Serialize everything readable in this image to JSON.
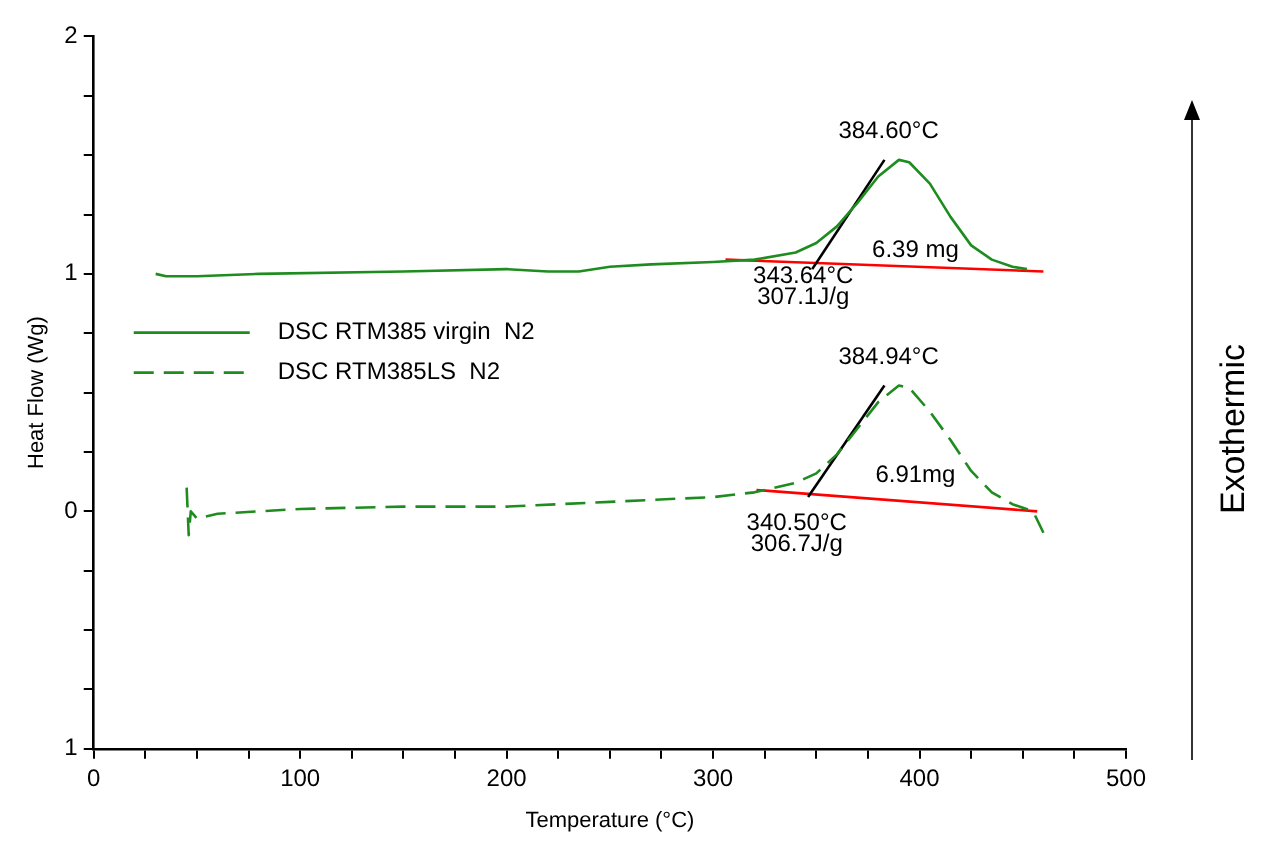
{
  "chart_data": {
    "type": "line",
    "xlabel": "Temperature (°C)",
    "ylabel": "Heat Flow (Wg)",
    "xlim": [
      0,
      500
    ],
    "xticks": [
      0,
      {
        "value": 25,
        "label": null
      },
      100,
      {
        "value": 50,
        "label": null
      },
      {
        "value": 75,
        "label": null
      },
      {
        "value": 125,
        "label": null
      },
      {
        "value": 150,
        "label": null
      },
      {
        "value": 175,
        "label": null
      },
      200,
      {
        "value": 225,
        "label": null
      },
      {
        "value": 250,
        "label": null
      },
      {
        "value": 275,
        "label": null
      },
      300,
      {
        "value": 325,
        "label": null
      },
      {
        "value": 350,
        "label": null
      },
      {
        "value": 375,
        "label": null
      },
      400,
      {
        "value": 425,
        "label": null
      },
      {
        "value": 450,
        "label": null
      },
      {
        "value": 475,
        "label": null
      },
      500
    ],
    "ylim": [
      -1,
      2
    ],
    "yticks": [
      {
        "value": -1,
        "label": "1"
      },
      {
        "value": -0.75,
        "label": null
      },
      {
        "value": -0.5,
        "label": null
      },
      {
        "value": -0.25,
        "label": null
      },
      0,
      {
        "value": 0.25,
        "label": null
      },
      {
        "value": 0.5,
        "label": null
      },
      {
        "value": 0.75,
        "label": null
      },
      1,
      {
        "value": 1.25,
        "label": null
      },
      {
        "value": 1.5,
        "label": null
      },
      {
        "value": 1.75,
        "label": null
      },
      2
    ],
    "grid": false,
    "legend": "left",
    "marker": "none",
    "series": [
      {
        "name": "DSC RTM385 virgin  N2",
        "color": "#1e8c1e",
        "line_style": "solid",
        "x": [
          30,
          35,
          50,
          80,
          150,
          200,
          220,
          235,
          250,
          270,
          300,
          320,
          340,
          350,
          360,
          370,
          380,
          390,
          395,
          405,
          415,
          425,
          435,
          445,
          452
        ],
        "values": [
          1.0,
          0.99,
          0.99,
          1.0,
          1.01,
          1.02,
          1.01,
          1.01,
          1.03,
          1.04,
          1.05,
          1.06,
          1.09,
          1.13,
          1.2,
          1.3,
          1.41,
          1.48,
          1.47,
          1.38,
          1.24,
          1.12,
          1.06,
          1.03,
          1.02
        ]
      },
      {
        "name": "DSC RTM385LS  N2",
        "color": "#1e8c1e",
        "line_style": "dashed",
        "x": [
          45,
          46,
          47,
          50,
          60,
          100,
          150,
          200,
          250,
          300,
          320,
          340,
          350,
          360,
          370,
          380,
          390,
          395,
          405,
          415,
          425,
          435,
          445,
          455,
          460
        ],
        "values": [
          0.1,
          -0.1,
          0.0,
          -0.03,
          -0.01,
          0.01,
          0.02,
          0.02,
          0.04,
          0.06,
          0.08,
          0.12,
          0.16,
          0.24,
          0.35,
          0.46,
          0.53,
          0.52,
          0.42,
          0.3,
          0.17,
          0.08,
          0.03,
          0.0,
          -0.09
        ]
      },
      {
        "color": "#000000",
        "line_style": "solid",
        "x": [
          348,
          383
        ],
        "values": [
          1.02,
          1.48
        ]
      },
      {
        "color": "#ff0000",
        "line_style": "solid",
        "x": [
          306,
          460
        ],
        "values": [
          1.06,
          1.01
        ]
      },
      {
        "color": "#000000",
        "line_style": "solid",
        "x": [
          346,
          383
        ],
        "values": [
          0.06,
          0.53
        ]
      },
      {
        "color": "#ff0000",
        "line_style": "solid",
        "x": [
          321,
          457
        ],
        "values": [
          0.09,
          0.0
        ]
      }
    ],
    "annotations": [
      "384.60°C",
      "6.39 mg",
      "343.64°C",
      "307.1J/g",
      "384.94°C",
      "6.91mg",
      "340.50°C",
      "306.7J/g",
      "Exothermic"
    ]
  }
}
